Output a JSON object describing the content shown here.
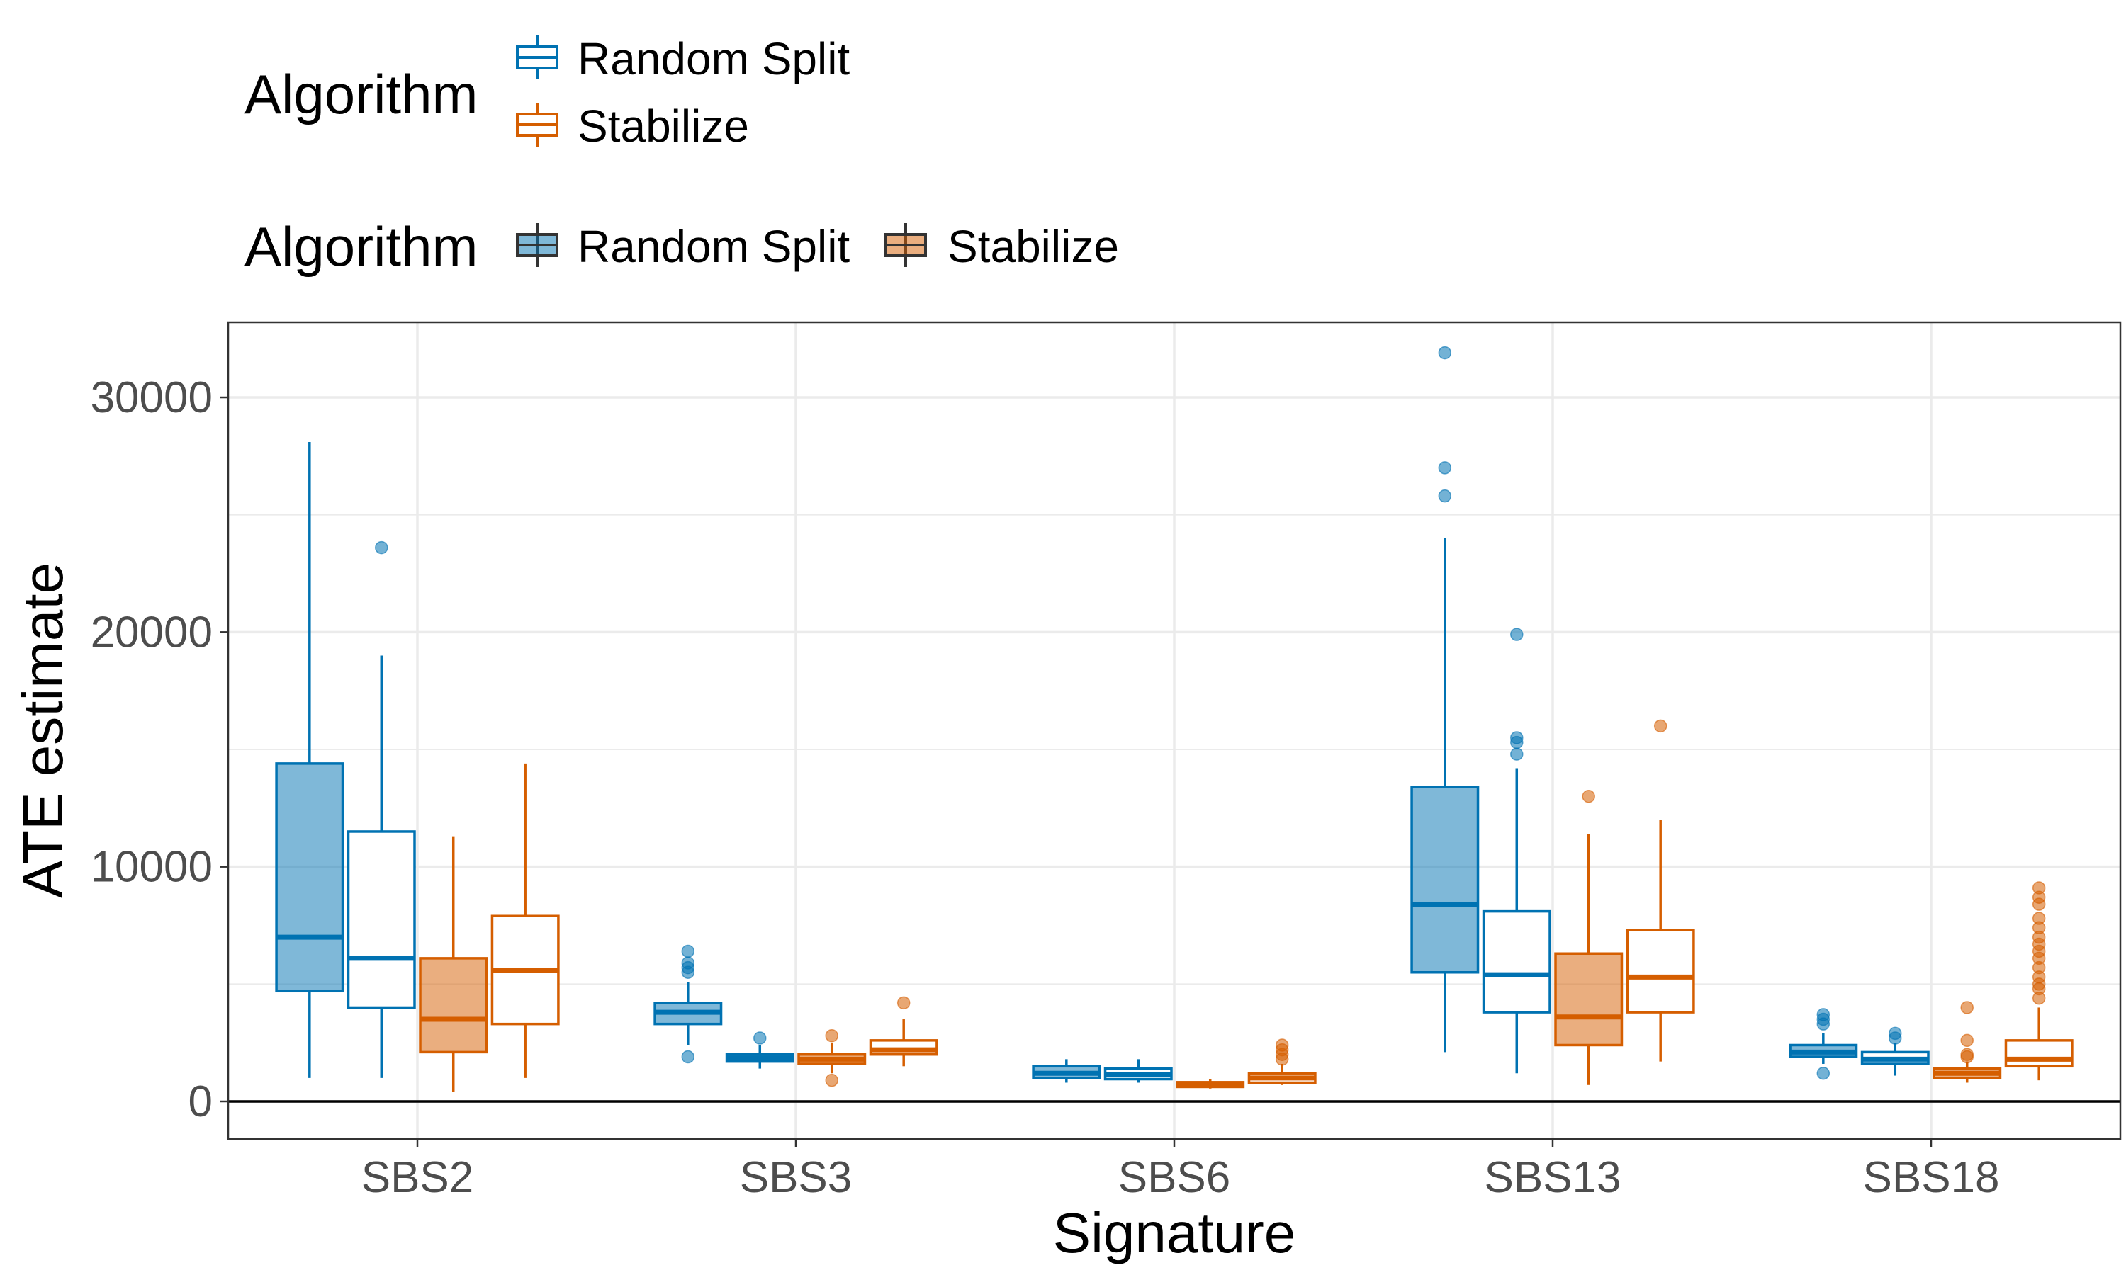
{
  "chart_data": {
    "type": "boxplot",
    "xlabel": "Signature",
    "ylabel": "ATE estimate",
    "categories": [
      "SBS2",
      "SBS3",
      "SBS6",
      "SBS13",
      "SBS18"
    ],
    "ylim": [
      -1600,
      33200
    ],
    "yticks": [
      0,
      10000,
      20000,
      30000
    ],
    "hline": 0,
    "grid": true,
    "legend_position": "top-left",
    "legends": [
      {
        "title": "Algorithm",
        "style": "outline",
        "entries": [
          {
            "label": "Random Split",
            "color": "#0072B2"
          },
          {
            "label": "Stabilize",
            "color": "#D55E00"
          }
        ]
      },
      {
        "title": "Algorithm",
        "style": "filled",
        "entries": [
          {
            "label": "Random Split",
            "color": "#0072B2"
          },
          {
            "label": "Stabilize",
            "color": "#D55E00"
          }
        ]
      }
    ],
    "colors": {
      "Random Split": "#0072B2",
      "Stabilize": "#D55E00"
    },
    "box_order": [
      {
        "algorithm": "Random Split",
        "style": "filled"
      },
      {
        "algorithm": "Random Split",
        "style": "outline"
      },
      {
        "algorithm": "Stabilize",
        "style": "filled"
      },
      {
        "algorithm": "Stabilize",
        "style": "outline"
      }
    ],
    "series": [
      {
        "category": "SBS2",
        "boxes": [
          {
            "lower": 1000,
            "q1": 4700,
            "median": 7000,
            "q3": 14400,
            "upper": 28100,
            "outliers": []
          },
          {
            "lower": 1000,
            "q1": 4000,
            "median": 6100,
            "q3": 11500,
            "upper": 19000,
            "outliers": [
              23600
            ]
          },
          {
            "lower": 400,
            "q1": 2100,
            "median": 3500,
            "q3": 6100,
            "upper": 11300,
            "outliers": []
          },
          {
            "lower": 1000,
            "q1": 3300,
            "median": 5600,
            "q3": 7900,
            "upper": 14400,
            "outliers": []
          }
        ]
      },
      {
        "category": "SBS3",
        "boxes": [
          {
            "lower": 2400,
            "q1": 3300,
            "median": 3800,
            "q3": 4200,
            "upper": 5100,
            "outliers": [
              1900,
              5500,
              5700,
              5900,
              6400
            ]
          },
          {
            "lower": 1400,
            "q1": 1700,
            "median": 1850,
            "q3": 2000,
            "upper": 2400,
            "outliers": [
              2700
            ]
          },
          {
            "lower": 1200,
            "q1": 1600,
            "median": 1800,
            "q3": 2000,
            "upper": 2500,
            "outliers": [
              900,
              2800
            ]
          },
          {
            "lower": 1500,
            "q1": 2000,
            "median": 2200,
            "q3": 2600,
            "upper": 3500,
            "outliers": [
              4200
            ]
          }
        ]
      },
      {
        "category": "SBS6",
        "boxes": [
          {
            "lower": 800,
            "q1": 1000,
            "median": 1200,
            "q3": 1500,
            "upper": 1800,
            "outliers": []
          },
          {
            "lower": 800,
            "q1": 950,
            "median": 1150,
            "q3": 1400,
            "upper": 1800,
            "outliers": []
          },
          {
            "lower": 550,
            "q1": 620,
            "median": 700,
            "q3": 820,
            "upper": 950,
            "outliers": []
          },
          {
            "lower": 700,
            "q1": 800,
            "median": 1000,
            "q3": 1200,
            "upper": 1600,
            "outliers": [
              1800,
              2000,
              2200,
              2400
            ]
          }
        ]
      },
      {
        "category": "SBS13",
        "boxes": [
          {
            "lower": 2100,
            "q1": 5500,
            "median": 8400,
            "q3": 13400,
            "upper": 24000,
            "outliers": [
              25800,
              27000,
              31900
            ]
          },
          {
            "lower": 1200,
            "q1": 3800,
            "median": 5400,
            "q3": 8100,
            "upper": 14200,
            "outliers": [
              14800,
              15300,
              15500,
              19900
            ]
          },
          {
            "lower": 700,
            "q1": 2400,
            "median": 3600,
            "q3": 6300,
            "upper": 11400,
            "outliers": [
              13000
            ]
          },
          {
            "lower": 1700,
            "q1": 3800,
            "median": 5300,
            "q3": 7300,
            "upper": 12000,
            "outliers": [
              16000
            ]
          }
        ]
      },
      {
        "category": "SBS18",
        "boxes": [
          {
            "lower": 1600,
            "q1": 1900,
            "median": 2100,
            "q3": 2400,
            "upper": 2900,
            "outliers": [
              1200,
              3300,
              3500,
              3700
            ]
          },
          {
            "lower": 1100,
            "q1": 1600,
            "median": 1800,
            "q3": 2100,
            "upper": 2500,
            "outliers": [
              2700,
              2900
            ]
          },
          {
            "lower": 800,
            "q1": 1000,
            "median": 1200,
            "q3": 1400,
            "upper": 1700,
            "outliers": [
              1900,
              2000,
              2600,
              4000
            ]
          },
          {
            "lower": 900,
            "q1": 1500,
            "median": 1800,
            "q3": 2600,
            "upper": 4000,
            "outliers": [
              4400,
              4800,
              5000,
              5300,
              5700,
              6100,
              6400,
              6700,
              7000,
              7400,
              7800,
              8400,
              8700,
              9100
            ]
          }
        ]
      }
    ]
  }
}
